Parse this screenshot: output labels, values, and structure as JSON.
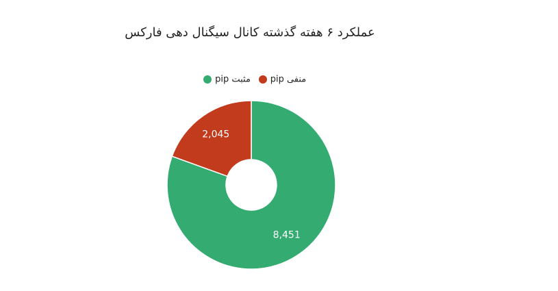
{
  "chart_data": {
    "type": "donut",
    "title": "عملکرد ۶ هفته گذشته کانال سیگنال دهی فارکس",
    "categories": [
      "مثبت pip",
      "منفی pip"
    ],
    "values": [
      8451,
      2045
    ],
    "value_labels": [
      "8,451",
      "2,045"
    ],
    "colors": [
      "#33ab71",
      "#c23b1d"
    ]
  }
}
